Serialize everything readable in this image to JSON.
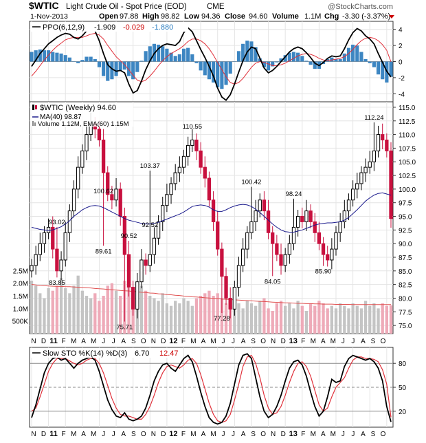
{
  "header": {
    "symbol": "$WTIC",
    "name": "Light Crude Oil - Spot Price (EOD)",
    "exchange": "CME",
    "watermark": "@StockCharts.com",
    "date": "1-Nov-2013",
    "open_label": "Open",
    "open": "97.88",
    "high_label": "High",
    "high": "98.82",
    "low_label": "Low",
    "low": "94.36",
    "close_label": "Close",
    "close": "94.60",
    "volume_label": "Volume",
    "volume": "1.1M",
    "chg_label": "Chg",
    "chg": "-3.30 (-3.37%)",
    "chg_icon": "down-triangle-icon",
    "down_color": "#cc0000"
  },
  "ppo_panel": {
    "label": "PPO(6,12,9)",
    "values": [
      "-1.909",
      "-0.029",
      "-1.880"
    ],
    "value_colors": [
      "#000000",
      "#cc0000",
      "#2e7fc1"
    ]
  },
  "price_panel": {
    "label": "$WTIC (Weekly) 94.60",
    "ma_label": "MA(40) 98.87",
    "vol_label": "Volume 1.12M, EMA(60) 1.15M",
    "ma_color": "#1a1a8c",
    "up_color": "#000000",
    "down_color": "#c8103e"
  },
  "sto_panel": {
    "label": "Slow STO %K(14) %D(3)",
    "values": [
      "6.70",
      "12.47"
    ],
    "value_colors": [
      "#000000",
      "#cc0000"
    ]
  },
  "chart_data": [
    {
      "type": "candlestick",
      "title": "$WTIC (Weekly) 94.60",
      "x_tick_labels": [
        "N",
        "D",
        "11",
        "F",
        "M",
        "A",
        "M",
        "J",
        "J",
        "A",
        "S",
        "O",
        "N",
        "D",
        "12",
        "F",
        "M",
        "A",
        "M",
        "J",
        "J",
        "A",
        "S",
        "O",
        "N",
        "D",
        "13",
        "F",
        "M",
        "A",
        "M",
        "J",
        "J",
        "A",
        "S",
        "O"
      ],
      "y_ticks": [
        75.0,
        77.5,
        80.0,
        82.5,
        85.0,
        87.5,
        90.0,
        92.5,
        95.0,
        97.5,
        100.0,
        102.5,
        105.0,
        107.5,
        110.0,
        112.5,
        115.0
      ],
      "ylim": [
        73.5,
        116
      ],
      "grid": true,
      "annotations": [
        {
          "week": 6,
          "label": "93.02",
          "value": 93.02
        },
        {
          "week": 6,
          "label": "83.85",
          "value": 83.85
        },
        {
          "week": 17,
          "label": "100.62",
          "value": 100.62
        },
        {
          "week": 17,
          "label": "89.61",
          "value": 89.61
        },
        {
          "week": 22,
          "label": "75.71",
          "value": 75.71
        },
        {
          "week": 23,
          "label": "90.52",
          "value": 90.52
        },
        {
          "week": 28,
          "label": "92.52",
          "value": 92.52
        },
        {
          "week": 28,
          "label": "103.37",
          "value": 103.37
        },
        {
          "week": 38,
          "label": "110.55",
          "value": 110.55
        },
        {
          "week": 45,
          "label": "77.28",
          "value": 77.28
        },
        {
          "week": 52,
          "label": "100.42",
          "value": 100.42
        },
        {
          "week": 57,
          "label": "84.05",
          "value": 84.05
        },
        {
          "week": 62,
          "label": "98.24",
          "value": 98.24
        },
        {
          "week": 69,
          "label": "85.90",
          "value": 85.9
        },
        {
          "week": 81,
          "label": "112.24",
          "value": 112.24
        }
      ],
      "ma40": [
        93.0,
        92.8,
        92.6,
        92.5,
        92.4,
        92.5,
        92.8,
        93.1,
        93.6,
        94.2,
        95.0,
        95.6,
        96.2,
        96.6,
        96.9,
        97.0,
        96.9,
        96.6,
        96.2,
        95.8,
        95.4,
        95.0,
        94.6,
        94.3,
        94.1,
        93.9,
        93.7,
        93.6,
        93.6,
        93.7,
        93.9,
        94.2,
        94.5,
        94.8,
        95.1,
        95.4,
        95.8,
        96.3,
        96.8,
        97.0,
        97.1,
        97.0,
        96.7,
        96.2,
        95.9,
        95.9,
        96.2,
        96.6,
        96.9,
        97.1,
        97.2,
        97.1,
        96.8,
        96.3,
        95.7,
        95.0,
        94.3,
        93.6,
        93.0,
        92.5,
        92.2,
        92.1,
        92.1,
        92.3,
        92.5,
        92.8,
        93.1,
        93.4,
        93.6,
        93.7,
        93.8,
        93.8,
        93.9,
        94.0,
        94.3,
        94.8,
        95.5,
        96.2,
        97.0,
        97.8,
        98.4,
        98.9,
        99.2,
        99.3,
        99.1,
        98.87
      ],
      "volume_ticks": [
        "2.5M",
        "2.0M",
        "1.5M",
        "1.0M",
        "500K"
      ],
      "volume_range_millions": [
        0,
        3.0
      ],
      "volume_ema60": [
        1.95,
        1.93,
        1.91,
        1.9,
        1.89,
        1.88,
        1.87,
        1.87,
        1.86,
        1.86,
        1.85,
        1.84,
        1.83,
        1.82,
        1.81,
        1.79,
        1.78,
        1.77,
        1.75,
        1.74,
        1.73,
        1.71,
        1.7,
        1.69,
        1.67,
        1.66,
        1.64,
        1.63,
        1.61,
        1.6,
        1.58,
        1.57,
        1.55,
        1.54,
        1.52,
        1.51,
        1.49,
        1.48,
        1.46,
        1.45,
        1.44,
        1.42,
        1.41,
        1.4,
        1.39,
        1.37,
        1.36,
        1.35,
        1.34,
        1.33,
        1.32,
        1.31,
        1.3,
        1.29,
        1.28,
        1.27,
        1.26,
        1.25,
        1.24,
        1.23,
        1.22,
        1.22,
        1.21,
        1.2,
        1.2,
        1.19,
        1.19,
        1.18,
        1.18,
        1.17,
        1.17,
        1.17,
        1.16,
        1.16,
        1.16,
        1.16,
        1.15,
        1.15,
        1.15,
        1.15,
        1.15,
        1.15,
        1.15,
        1.15,
        1.15,
        1.15
      ]
    },
    {
      "type": "line+bar",
      "title": "PPO(6,12,9)",
      "y_ticks": [
        4,
        2,
        0,
        -2,
        -4
      ],
      "ylim": [
        -5,
        5
      ],
      "ppo": [
        -0.6,
        0.2,
        1.0,
        1.6,
        2.2,
        2.6,
        3.0,
        3.3,
        3.5,
        3.4,
        3.0,
        2.8,
        3.2,
        3.8,
        4.0,
        3.8,
        2.6,
        1.0,
        -0.4,
        -0.9,
        -1.2,
        -1.1,
        -1.4,
        -2.8,
        -3.9,
        -3.6,
        -2.4,
        -1.0,
        0.1,
        1.0,
        1.6,
        2.0,
        2.2,
        2.1,
        2.0,
        2.5,
        3.6,
        4.2,
        3.7,
        2.6,
        1.5,
        0.5,
        -0.6,
        -1.8,
        -3.3,
        -4.4,
        -4.8,
        -4.1,
        -2.8,
        -1.3,
        0.1,
        1.2,
        1.8,
        1.6,
        0.4,
        -0.8,
        -1.4,
        -1.1,
        -0.6,
        0.0,
        0.6,
        1.2,
        1.6,
        1.8,
        1.6,
        1.1,
        0.5,
        -0.2,
        -0.5,
        -0.1,
        0.4,
        0.7,
        0.6,
        0.7,
        1.6,
        2.7,
        3.6,
        4.1,
        3.8,
        3.2,
        2.8,
        2.2,
        1.0,
        -0.1,
        -1.2,
        -1.909
      ],
      "signal": [
        -1.8,
        -1.2,
        -0.5,
        0.2,
        0.8,
        1.4,
        1.9,
        2.3,
        2.7,
        2.9,
        3.0,
        3.0,
        3.0,
        3.2,
        3.4,
        3.5,
        3.3,
        2.8,
        2.0,
        1.3,
        0.6,
        0.1,
        -0.4,
        -1.0,
        -1.7,
        -2.3,
        -2.5,
        -2.3,
        -1.8,
        -1.2,
        -0.5,
        0.1,
        0.6,
        1.0,
        1.3,
        1.6,
        2.0,
        2.5,
        2.8,
        2.8,
        2.6,
        2.2,
        1.6,
        0.8,
        -0.1,
        -1.0,
        -1.9,
        -2.6,
        -2.8,
        -2.6,
        -2.1,
        -1.4,
        -0.7,
        -0.2,
        0.0,
        -0.1,
        -0.3,
        -0.5,
        -0.5,
        -0.4,
        -0.2,
        0.1,
        0.4,
        0.7,
        0.9,
        1.0,
        0.9,
        0.7,
        0.4,
        0.2,
        0.1,
        0.2,
        0.3,
        0.4,
        0.6,
        1.0,
        1.5,
        2.1,
        2.6,
        2.9,
        3.0,
        2.9,
        2.6,
        2.1,
        1.4,
        -0.029
      ]
    },
    {
      "type": "line",
      "title": "Slow STO %K(14) %D(3)",
      "y_ticks": [
        80,
        50,
        20
      ],
      "ylim": [
        0,
        100
      ],
      "k": [
        12,
        28,
        48,
        68,
        80,
        86,
        88,
        84,
        86,
        80,
        74,
        80,
        84,
        86,
        88,
        84,
        70,
        52,
        34,
        22,
        14,
        12,
        18,
        10,
        8,
        10,
        14,
        24,
        40,
        58,
        70,
        78,
        80,
        74,
        70,
        78,
        86,
        90,
        82,
        64,
        44,
        26,
        12,
        6,
        4,
        6,
        14,
        30,
        54,
        78,
        90,
        92,
        86,
        62,
        38,
        20,
        12,
        16,
        26,
        40,
        58,
        74,
        82,
        84,
        78,
        64,
        44,
        26,
        14,
        20,
        38,
        60,
        56,
        58,
        76,
        86,
        90,
        88,
        86,
        84,
        86,
        82,
        74,
        58,
        26,
        6.7
      ],
      "d": [
        20,
        24,
        38,
        54,
        70,
        80,
        86,
        86,
        86,
        83,
        80,
        78,
        80,
        84,
        86,
        86,
        80,
        68,
        52,
        36,
        24,
        16,
        14,
        14,
        12,
        10,
        10,
        16,
        26,
        40,
        56,
        68,
        76,
        78,
        76,
        74,
        78,
        84,
        86,
        80,
        66,
        48,
        30,
        16,
        8,
        6,
        8,
        16,
        34,
        54,
        76,
        88,
        90,
        80,
        62,
        40,
        24,
        16,
        18,
        26,
        40,
        56,
        70,
        80,
        82,
        76,
        64,
        46,
        28,
        20,
        24,
        38,
        50,
        56,
        62,
        74,
        84,
        88,
        88,
        86,
        86,
        85,
        82,
        72,
        54,
        12.47
      ]
    }
  ]
}
